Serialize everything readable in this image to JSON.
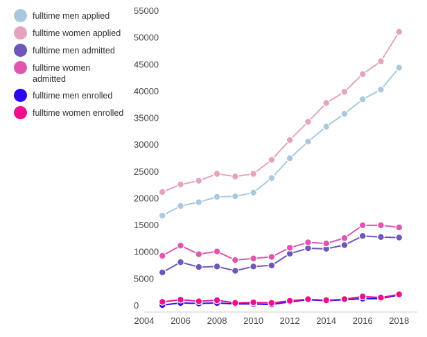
{
  "chart_data": {
    "type": "line",
    "title": "",
    "xlabel": "",
    "ylabel": "",
    "x": [
      2005,
      2006,
      2007,
      2008,
      2009,
      2010,
      2011,
      2012,
      2013,
      2014,
      2015,
      2016,
      2017,
      2018
    ],
    "xticks": [
      "2004",
      "2006",
      "2008",
      "2010",
      "2012",
      "2014",
      "2016",
      "2018"
    ],
    "yticks": [
      "0",
      "5000",
      "10000",
      "15000",
      "20000",
      "25000",
      "30000",
      "35000",
      "40000",
      "45000",
      "50000",
      "55000"
    ],
    "xlim": [
      2004,
      2019
    ],
    "ylim": [
      0,
      55000
    ],
    "grid": false,
    "legend_position": "top-left",
    "series": [
      {
        "name": "fulltime men applied",
        "color": "#aac9de",
        "values": [
          18000,
          19800,
          20500,
          21500,
          21600,
          22300,
          25000,
          28700,
          31800,
          34600,
          37000,
          39700,
          41500,
          45600
        ]
      },
      {
        "name": "fulltime women applied",
        "color": "#e5a3bf",
        "values": [
          22400,
          23800,
          24500,
          25800,
          25300,
          25800,
          28400,
          32100,
          35500,
          39000,
          41100,
          44400,
          46800,
          52300
        ]
      },
      {
        "name": "fulltime men admitted",
        "color": "#6f56bb",
        "values": [
          7400,
          9300,
          8400,
          8500,
          7700,
          8500,
          8700,
          10900,
          11900,
          11800,
          12500,
          14200,
          14000,
          13900
        ]
      },
      {
        "name": "fulltime women admitted",
        "color": "#e055ad",
        "values": [
          10500,
          12400,
          10800,
          11300,
          9700,
          10000,
          10300,
          12000,
          13000,
          12800,
          13800,
          16200,
          16200,
          15800
        ]
      },
      {
        "name": "fulltime men enrolled",
        "color": "#2d08f2",
        "values": [
          1300,
          1700,
          1600,
          1700,
          1500,
          1500,
          1400,
          1900,
          2300,
          2100,
          2300,
          2500,
          2500,
          3200
        ]
      },
      {
        "name": "fulltime women enrolled",
        "color": "#ee0f8a",
        "values": [
          1900,
          2300,
          2000,
          2200,
          1700,
          1800,
          1700,
          2100,
          2400,
          2200,
          2400,
          2900,
          2700,
          3300
        ]
      }
    ]
  }
}
